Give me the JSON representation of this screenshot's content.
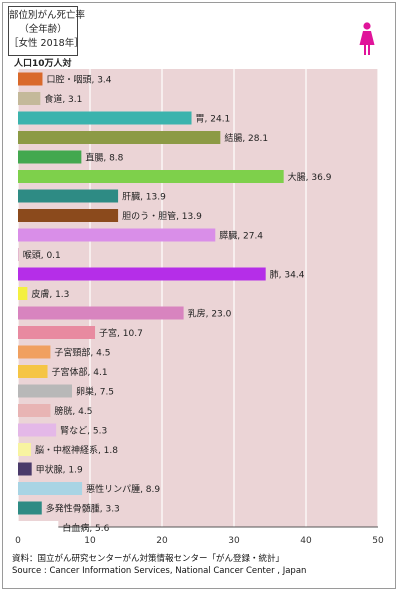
{
  "title": {
    "line1": "部位別がん死亡率",
    "line2": "（全年齢）",
    "line3": "［女性 2018年］"
  },
  "icon": "female-icon",
  "caption": {
    "line1": "資料：国立がん研究センターがん対策情報センター「がん登録・統計」",
    "line2": "Source : Cancer Information Services, National Cancer Center , Japan"
  },
  "chart_data": {
    "type": "bar",
    "orientation": "horizontal",
    "ylabel": "人口10万人対",
    "xlim": [
      0,
      50
    ],
    "xticks": [
      0,
      10,
      20,
      30,
      40,
      50
    ],
    "grid": true,
    "background_color": "#ebd4d6",
    "categories": [
      "口腔・咽頭",
      "食道",
      "胃",
      "結腸",
      "直腸",
      "大腸",
      "肝臓",
      "胆のう・胆管",
      "膵臓",
      "喉頭",
      "肺",
      "皮膚",
      "乳房",
      "子宮",
      "子宮頸部",
      "子宮体部",
      "卵巣",
      "膀胱",
      "腎など",
      "脳・中枢神経系",
      "甲状腺",
      "悪性リンパ腫",
      "多発性骨髄腫",
      "白血病"
    ],
    "values": [
      3.4,
      3.1,
      24.1,
      28.1,
      8.8,
      36.9,
      13.9,
      13.9,
      27.4,
      0.1,
      34.4,
      1.3,
      23.0,
      10.7,
      4.5,
      4.1,
      7.5,
      4.5,
      5.3,
      1.8,
      1.9,
      8.9,
      3.3,
      5.6
    ],
    "value_labels": [
      "3.4",
      "3.1",
      "24.1",
      "28.1",
      "8.8",
      "36.9",
      "13.9",
      "13.9",
      "27.4",
      "0.1",
      "34.4",
      "1.3",
      "23.0",
      "10.7",
      "4.5",
      "4.1",
      "7.5",
      "4.5",
      "5.3",
      "1.8",
      "1.9",
      "8.9",
      "3.3",
      "5.6"
    ],
    "colors": [
      "#d9692b",
      "#c4b99a",
      "#3bb3ad",
      "#8c9a45",
      "#43a84f",
      "#7ed04b",
      "#2e8b84",
      "#8b4a1c",
      "#d98ee8",
      "#e4b8ce",
      "#b52ee8",
      "#f4f040",
      "#d884bf",
      "#e88aa0",
      "#f0a060",
      "#f5c545",
      "#b8b8b8",
      "#e8b4b4",
      "#e4b8e8",
      "#f8f4a0",
      "#4a3a6a",
      "#a8d4e4",
      "#2e8b84",
      "#ffffff"
    ]
  }
}
